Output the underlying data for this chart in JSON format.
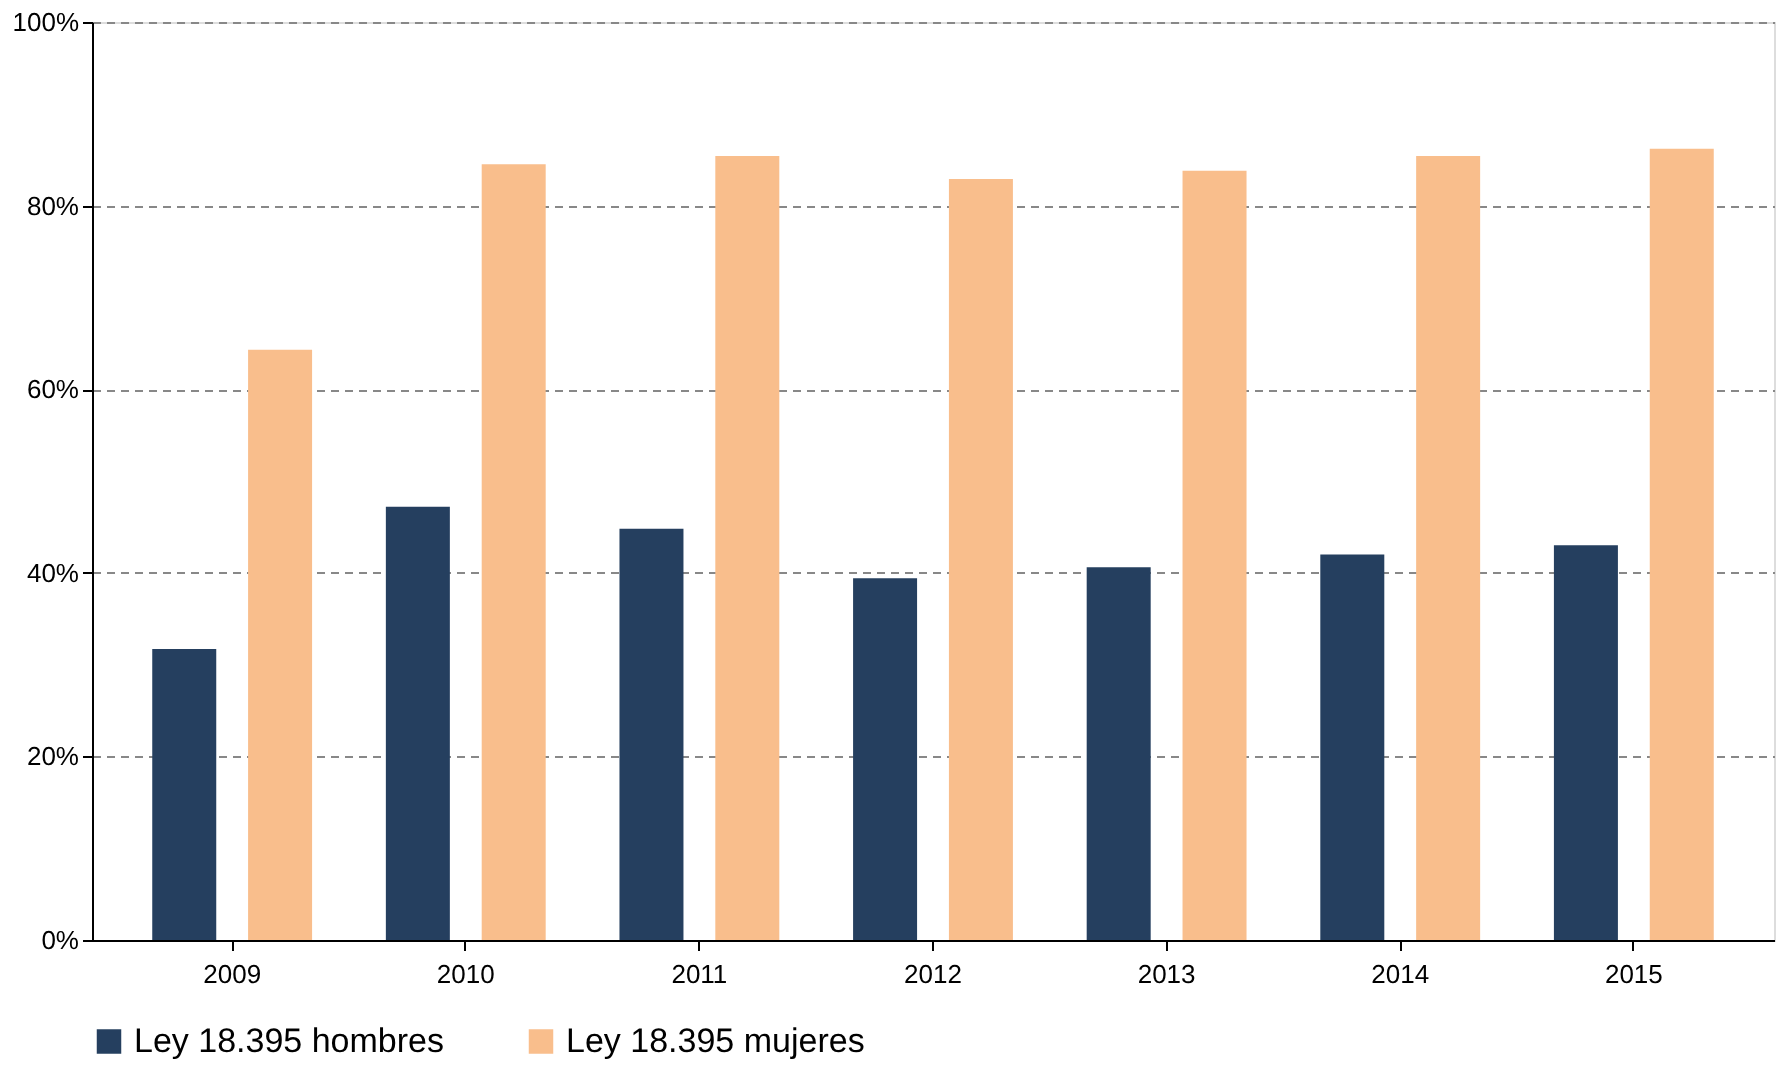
{
  "chart_data": {
    "type": "bar",
    "categories": [
      "2009",
      "2010",
      "2011",
      "2012",
      "2013",
      "2014",
      "2015"
    ],
    "series": [
      {
        "name": "Ley 18.395 hombres",
        "color": "#253f5f",
        "values": [
          31.7,
          47.2,
          44.8,
          39.4,
          40.6,
          42.0,
          43.0
        ]
      },
      {
        "name": "Ley 18.395 mujeres",
        "color": "#f9be8c",
        "values": [
          64.3,
          84.5,
          85.4,
          82.9,
          83.8,
          85.4,
          86.2
        ]
      }
    ],
    "ylim": [
      0,
      100
    ],
    "yticks": [
      {
        "value": 0,
        "label": "0%"
      },
      {
        "value": 20,
        "label": "20%"
      },
      {
        "value": 40,
        "label": "40%"
      },
      {
        "value": 60,
        "label": "60%"
      },
      {
        "value": 80,
        "label": "80%"
      },
      {
        "value": 100,
        "label": "100%"
      }
    ],
    "grid": "y",
    "legend": "bottom"
  }
}
